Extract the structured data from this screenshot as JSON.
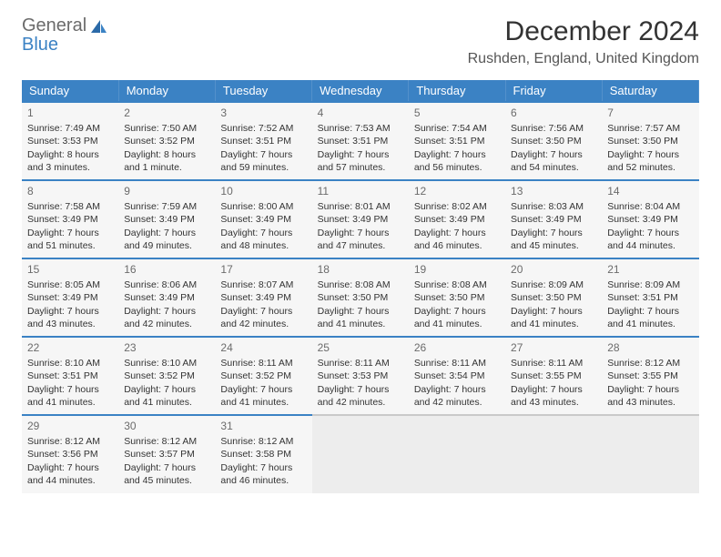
{
  "logo": {
    "part1": "General",
    "part2": "Blue"
  },
  "title": "December 2024",
  "location": "Rushden, England, United Kingdom",
  "colors": {
    "header_bg": "#3b82c4",
    "header_text": "#ffffff",
    "cell_bg": "#f6f6f6",
    "empty_bg": "#ededed",
    "border": "#3b82c4",
    "text": "#333333",
    "daynum": "#6b6b6b"
  },
  "weekdays": [
    "Sunday",
    "Monday",
    "Tuesday",
    "Wednesday",
    "Thursday",
    "Friday",
    "Saturday"
  ],
  "days": [
    {
      "n": "1",
      "sunrise": "Sunrise: 7:49 AM",
      "sunset": "Sunset: 3:53 PM",
      "daylight": "Daylight: 8 hours and 3 minutes."
    },
    {
      "n": "2",
      "sunrise": "Sunrise: 7:50 AM",
      "sunset": "Sunset: 3:52 PM",
      "daylight": "Daylight: 8 hours and 1 minute."
    },
    {
      "n": "3",
      "sunrise": "Sunrise: 7:52 AM",
      "sunset": "Sunset: 3:51 PM",
      "daylight": "Daylight: 7 hours and 59 minutes."
    },
    {
      "n": "4",
      "sunrise": "Sunrise: 7:53 AM",
      "sunset": "Sunset: 3:51 PM",
      "daylight": "Daylight: 7 hours and 57 minutes."
    },
    {
      "n": "5",
      "sunrise": "Sunrise: 7:54 AM",
      "sunset": "Sunset: 3:51 PM",
      "daylight": "Daylight: 7 hours and 56 minutes."
    },
    {
      "n": "6",
      "sunrise": "Sunrise: 7:56 AM",
      "sunset": "Sunset: 3:50 PM",
      "daylight": "Daylight: 7 hours and 54 minutes."
    },
    {
      "n": "7",
      "sunrise": "Sunrise: 7:57 AM",
      "sunset": "Sunset: 3:50 PM",
      "daylight": "Daylight: 7 hours and 52 minutes."
    },
    {
      "n": "8",
      "sunrise": "Sunrise: 7:58 AM",
      "sunset": "Sunset: 3:49 PM",
      "daylight": "Daylight: 7 hours and 51 minutes."
    },
    {
      "n": "9",
      "sunrise": "Sunrise: 7:59 AM",
      "sunset": "Sunset: 3:49 PM",
      "daylight": "Daylight: 7 hours and 49 minutes."
    },
    {
      "n": "10",
      "sunrise": "Sunrise: 8:00 AM",
      "sunset": "Sunset: 3:49 PM",
      "daylight": "Daylight: 7 hours and 48 minutes."
    },
    {
      "n": "11",
      "sunrise": "Sunrise: 8:01 AM",
      "sunset": "Sunset: 3:49 PM",
      "daylight": "Daylight: 7 hours and 47 minutes."
    },
    {
      "n": "12",
      "sunrise": "Sunrise: 8:02 AM",
      "sunset": "Sunset: 3:49 PM",
      "daylight": "Daylight: 7 hours and 46 minutes."
    },
    {
      "n": "13",
      "sunrise": "Sunrise: 8:03 AM",
      "sunset": "Sunset: 3:49 PM",
      "daylight": "Daylight: 7 hours and 45 minutes."
    },
    {
      "n": "14",
      "sunrise": "Sunrise: 8:04 AM",
      "sunset": "Sunset: 3:49 PM",
      "daylight": "Daylight: 7 hours and 44 minutes."
    },
    {
      "n": "15",
      "sunrise": "Sunrise: 8:05 AM",
      "sunset": "Sunset: 3:49 PM",
      "daylight": "Daylight: 7 hours and 43 minutes."
    },
    {
      "n": "16",
      "sunrise": "Sunrise: 8:06 AM",
      "sunset": "Sunset: 3:49 PM",
      "daylight": "Daylight: 7 hours and 42 minutes."
    },
    {
      "n": "17",
      "sunrise": "Sunrise: 8:07 AM",
      "sunset": "Sunset: 3:49 PM",
      "daylight": "Daylight: 7 hours and 42 minutes."
    },
    {
      "n": "18",
      "sunrise": "Sunrise: 8:08 AM",
      "sunset": "Sunset: 3:50 PM",
      "daylight": "Daylight: 7 hours and 41 minutes."
    },
    {
      "n": "19",
      "sunrise": "Sunrise: 8:08 AM",
      "sunset": "Sunset: 3:50 PM",
      "daylight": "Daylight: 7 hours and 41 minutes."
    },
    {
      "n": "20",
      "sunrise": "Sunrise: 8:09 AM",
      "sunset": "Sunset: 3:50 PM",
      "daylight": "Daylight: 7 hours and 41 minutes."
    },
    {
      "n": "21",
      "sunrise": "Sunrise: 8:09 AM",
      "sunset": "Sunset: 3:51 PM",
      "daylight": "Daylight: 7 hours and 41 minutes."
    },
    {
      "n": "22",
      "sunrise": "Sunrise: 8:10 AM",
      "sunset": "Sunset: 3:51 PM",
      "daylight": "Daylight: 7 hours and 41 minutes."
    },
    {
      "n": "23",
      "sunrise": "Sunrise: 8:10 AM",
      "sunset": "Sunset: 3:52 PM",
      "daylight": "Daylight: 7 hours and 41 minutes."
    },
    {
      "n": "24",
      "sunrise": "Sunrise: 8:11 AM",
      "sunset": "Sunset: 3:52 PM",
      "daylight": "Daylight: 7 hours and 41 minutes."
    },
    {
      "n": "25",
      "sunrise": "Sunrise: 8:11 AM",
      "sunset": "Sunset: 3:53 PM",
      "daylight": "Daylight: 7 hours and 42 minutes."
    },
    {
      "n": "26",
      "sunrise": "Sunrise: 8:11 AM",
      "sunset": "Sunset: 3:54 PM",
      "daylight": "Daylight: 7 hours and 42 minutes."
    },
    {
      "n": "27",
      "sunrise": "Sunrise: 8:11 AM",
      "sunset": "Sunset: 3:55 PM",
      "daylight": "Daylight: 7 hours and 43 minutes."
    },
    {
      "n": "28",
      "sunrise": "Sunrise: 8:12 AM",
      "sunset": "Sunset: 3:55 PM",
      "daylight": "Daylight: 7 hours and 43 minutes."
    },
    {
      "n": "29",
      "sunrise": "Sunrise: 8:12 AM",
      "sunset": "Sunset: 3:56 PM",
      "daylight": "Daylight: 7 hours and 44 minutes."
    },
    {
      "n": "30",
      "sunrise": "Sunrise: 8:12 AM",
      "sunset": "Sunset: 3:57 PM",
      "daylight": "Daylight: 7 hours and 45 minutes."
    },
    {
      "n": "31",
      "sunrise": "Sunrise: 8:12 AM",
      "sunset": "Sunset: 3:58 PM",
      "daylight": "Daylight: 7 hours and 46 minutes."
    }
  ]
}
